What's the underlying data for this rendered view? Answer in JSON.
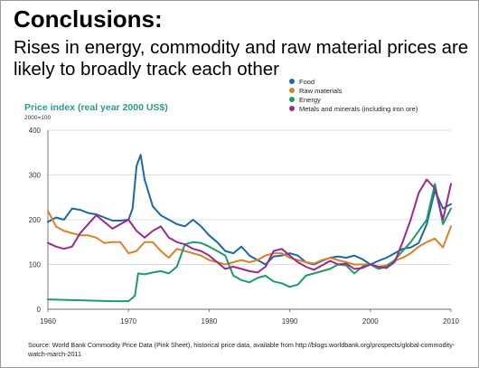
{
  "slide": {
    "heading": "Conclusions:",
    "subheading": "Rises in energy, commodity and raw material prices are likely to broadly track each other",
    "source": "Source: World Bank Commodity Price Data (Pink Sheet), historical price data, available from http://blogs.worldbank.org/prospects/global-commodity-watch-march-2011"
  },
  "chart_data": {
    "type": "line",
    "ylabel": "Price index (real year 2000 US$)",
    "ylabel_note": "2000=100",
    "xlim": [
      1960,
      2010
    ],
    "ylim": [
      0,
      400
    ],
    "x_ticks": [
      1960,
      1970,
      1980,
      1990,
      2000,
      2010
    ],
    "y_ticks": [
      0,
      100,
      200,
      300,
      400
    ],
    "grid": "horizontal",
    "legend_position": "top-right",
    "series": [
      {
        "name": "Food",
        "color": "#1b6aa5",
        "points": [
          [
            1960,
            195
          ],
          [
            1961,
            205
          ],
          [
            1962,
            200
          ],
          [
            1963,
            225
          ],
          [
            1964,
            222
          ],
          [
            1965,
            215
          ],
          [
            1966,
            212
          ],
          [
            1967,
            205
          ],
          [
            1968,
            198
          ],
          [
            1969,
            198
          ],
          [
            1970,
            200
          ],
          [
            1970.5,
            225
          ],
          [
            1971,
            320
          ],
          [
            1971.5,
            345
          ],
          [
            1972,
            290
          ],
          [
            1973,
            230
          ],
          [
            1974,
            210
          ],
          [
            1975,
            200
          ],
          [
            1976,
            190
          ],
          [
            1977,
            185
          ],
          [
            1978,
            200
          ],
          [
            1979,
            185
          ],
          [
            1980,
            165
          ],
          [
            1981,
            150
          ],
          [
            1982,
            130
          ],
          [
            1983,
            125
          ],
          [
            1984,
            140
          ],
          [
            1985,
            120
          ],
          [
            1986,
            110
          ],
          [
            1987,
            100
          ],
          [
            1988,
            118
          ],
          [
            1989,
            120
          ],
          [
            1990,
            125
          ],
          [
            1991,
            120
          ],
          [
            1992,
            105
          ],
          [
            1993,
            100
          ],
          [
            1994,
            108
          ],
          [
            1995,
            115
          ],
          [
            1996,
            118
          ],
          [
            1997,
            115
          ],
          [
            1998,
            120
          ],
          [
            1999,
            112
          ],
          [
            2000,
            100
          ],
          [
            2001,
            108
          ],
          [
            2002,
            115
          ],
          [
            2003,
            125
          ],
          [
            2004,
            135
          ],
          [
            2005,
            138
          ],
          [
            2006,
            148
          ],
          [
            2007,
            190
          ],
          [
            2008,
            265
          ],
          [
            2009,
            225
          ],
          [
            2010,
            235
          ]
        ]
      },
      {
        "name": "Raw materials",
        "color": "#d9822b",
        "points": [
          [
            1960,
            220
          ],
          [
            1961,
            185
          ],
          [
            1962,
            175
          ],
          [
            1963,
            170
          ],
          [
            1964,
            165
          ],
          [
            1965,
            165
          ],
          [
            1966,
            160
          ],
          [
            1967,
            148
          ],
          [
            1968,
            150
          ],
          [
            1969,
            150
          ],
          [
            1970,
            125
          ],
          [
            1971,
            130
          ],
          [
            1972,
            150
          ],
          [
            1973,
            150
          ],
          [
            1974,
            130
          ],
          [
            1975,
            115
          ],
          [
            1976,
            135
          ],
          [
            1977,
            130
          ],
          [
            1978,
            125
          ],
          [
            1979,
            120
          ],
          [
            1980,
            110
          ],
          [
            1981,
            105
          ],
          [
            1982,
            100
          ],
          [
            1983,
            105
          ],
          [
            1984,
            110
          ],
          [
            1985,
            105
          ],
          [
            1986,
            110
          ],
          [
            1987,
            120
          ],
          [
            1988,
            125
          ],
          [
            1989,
            125
          ],
          [
            1990,
            115
          ],
          [
            1991,
            110
          ],
          [
            1992,
            105
          ],
          [
            1993,
            102
          ],
          [
            1994,
            110
          ],
          [
            1995,
            115
          ],
          [
            1996,
            110
          ],
          [
            1997,
            105
          ],
          [
            1998,
            100
          ],
          [
            1999,
            100
          ],
          [
            2000,
            100
          ],
          [
            2001,
            95
          ],
          [
            2002,
            98
          ],
          [
            2003,
            108
          ],
          [
            2004,
            115
          ],
          [
            2005,
            125
          ],
          [
            2006,
            140
          ],
          [
            2007,
            150
          ],
          [
            2008,
            158
          ],
          [
            2009,
            138
          ],
          [
            2010,
            185
          ]
        ]
      },
      {
        "name": "Energy",
        "color": "#1f9a6b",
        "points": [
          [
            1960,
            22
          ],
          [
            1962,
            21
          ],
          [
            1964,
            20
          ],
          [
            1966,
            19
          ],
          [
            1968,
            18
          ],
          [
            1970,
            18
          ],
          [
            1970.8,
            30
          ],
          [
            1971.2,
            80
          ],
          [
            1972,
            78
          ],
          [
            1973,
            82
          ],
          [
            1974,
            85
          ],
          [
            1975,
            80
          ],
          [
            1976,
            95
          ],
          [
            1977,
            145
          ],
          [
            1978,
            150
          ],
          [
            1979,
            148
          ],
          [
            1980,
            140
          ],
          [
            1981,
            130
          ],
          [
            1982,
            120
          ],
          [
            1983,
            75
          ],
          [
            1984,
            65
          ],
          [
            1985,
            60
          ],
          [
            1986,
            70
          ],
          [
            1987,
            75
          ],
          [
            1988,
            62
          ],
          [
            1989,
            58
          ],
          [
            1990,
            50
          ],
          [
            1991,
            55
          ],
          [
            1992,
            75
          ],
          [
            1993,
            80
          ],
          [
            1994,
            85
          ],
          [
            1995,
            90
          ],
          [
            1996,
            100
          ],
          [
            1997,
            98
          ],
          [
            1998,
            80
          ],
          [
            1999,
            95
          ],
          [
            2000,
            100
          ],
          [
            2001,
            90
          ],
          [
            2002,
            95
          ],
          [
            2003,
            110
          ],
          [
            2004,
            130
          ],
          [
            2005,
            150
          ],
          [
            2006,
            175
          ],
          [
            2007,
            200
          ],
          [
            2008,
            280
          ],
          [
            2009,
            190
          ],
          [
            2010,
            225
          ]
        ]
      },
      {
        "name": "Metals and minerals (including iron ore)",
        "color": "#9b2a8a",
        "points": [
          [
            1960,
            148
          ],
          [
            1961,
            140
          ],
          [
            1962,
            135
          ],
          [
            1963,
            140
          ],
          [
            1964,
            170
          ],
          [
            1965,
            190
          ],
          [
            1966,
            210
          ],
          [
            1967,
            195
          ],
          [
            1968,
            180
          ],
          [
            1969,
            190
          ],
          [
            1970,
            200
          ],
          [
            1971,
            175
          ],
          [
            1972,
            160
          ],
          [
            1973,
            175
          ],
          [
            1974,
            185
          ],
          [
            1975,
            160
          ],
          [
            1976,
            150
          ],
          [
            1977,
            145
          ],
          [
            1978,
            135
          ],
          [
            1979,
            130
          ],
          [
            1980,
            120
          ],
          [
            1981,
            105
          ],
          [
            1982,
            90
          ],
          [
            1983,
            95
          ],
          [
            1984,
            90
          ],
          [
            1985,
            85
          ],
          [
            1986,
            82
          ],
          [
            1987,
            95
          ],
          [
            1988,
            130
          ],
          [
            1989,
            135
          ],
          [
            1990,
            120
          ],
          [
            1991,
            105
          ],
          [
            1992,
            95
          ],
          [
            1993,
            88
          ],
          [
            1994,
            98
          ],
          [
            1995,
            108
          ],
          [
            1996,
            100
          ],
          [
            1997,
            102
          ],
          [
            1998,
            90
          ],
          [
            1999,
            92
          ],
          [
            2000,
            100
          ],
          [
            2001,
            95
          ],
          [
            2002,
            92
          ],
          [
            2003,
            105
          ],
          [
            2004,
            150
          ],
          [
            2005,
            200
          ],
          [
            2006,
            260
          ],
          [
            2007,
            290
          ],
          [
            2008,
            270
          ],
          [
            2009,
            200
          ],
          [
            2010,
            280
          ]
        ]
      }
    ]
  }
}
